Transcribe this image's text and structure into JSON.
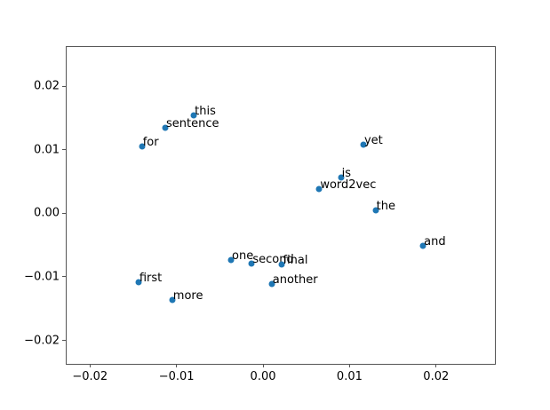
{
  "figure": {
    "background_color": "#ffffff",
    "title": ""
  },
  "chart_data": {
    "type": "scatter",
    "title": "",
    "xlabel": "",
    "ylabel": "",
    "grid": false,
    "legend_position": "none",
    "marker_color": "#1f77b4",
    "marker_size_px": 7,
    "text_color": "#000000",
    "spine_color": "#555555",
    "xlim": [
      -0.0227,
      0.0268
    ],
    "ylim": [
      -0.0237,
      0.0262
    ],
    "xticks": [
      {
        "value": -0.02,
        "label": "−0.02"
      },
      {
        "value": -0.01,
        "label": "−0.01"
      },
      {
        "value": 0.0,
        "label": "0.00"
      },
      {
        "value": 0.01,
        "label": "0.01"
      },
      {
        "value": 0.02,
        "label": "0.02"
      }
    ],
    "yticks": [
      {
        "value": 0.02,
        "label": "0.02"
      },
      {
        "value": 0.01,
        "label": "0.01"
      },
      {
        "value": 0.0,
        "label": "0.00"
      },
      {
        "value": -0.01,
        "label": "−0.01"
      },
      {
        "value": -0.02,
        "label": "−0.02"
      }
    ],
    "points": [
      {
        "label": "this",
        "x": -0.008,
        "y": 0.0155
      },
      {
        "label": "sentence",
        "x": -0.0113,
        "y": 0.0135
      },
      {
        "label": "for",
        "x": -0.014,
        "y": 0.0105
      },
      {
        "label": "yet",
        "x": 0.0116,
        "y": 0.0108
      },
      {
        "label": "is",
        "x": 0.009,
        "y": 0.0056
      },
      {
        "label": "word2vec",
        "x": 0.0065,
        "y": 0.0039
      },
      {
        "label": "the",
        "x": 0.013,
        "y": 0.0005
      },
      {
        "label": "and",
        "x": 0.0185,
        "y": -0.0051
      },
      {
        "label": "one",
        "x": -0.0037,
        "y": -0.0073
      },
      {
        "label": "second",
        "x": -0.0013,
        "y": -0.0079
      },
      {
        "label": "final",
        "x": 0.0022,
        "y": -0.008
      },
      {
        "label": "another",
        "x": 0.001,
        "y": -0.0111
      },
      {
        "label": "first",
        "x": -0.0144,
        "y": -0.0109
      },
      {
        "label": "more",
        "x": -0.0105,
        "y": -0.0136
      }
    ]
  }
}
